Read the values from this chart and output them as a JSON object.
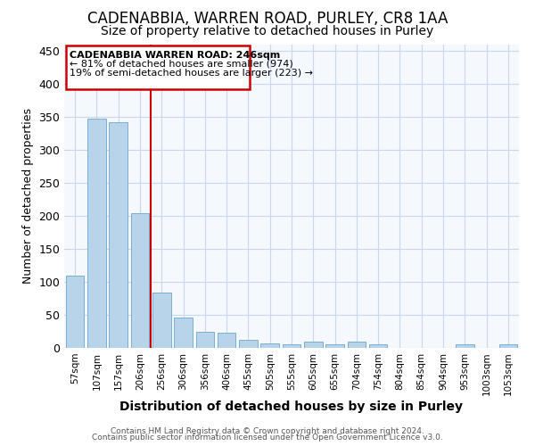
{
  "title": "CADENABBIA, WARREN ROAD, PURLEY, CR8 1AA",
  "subtitle": "Size of property relative to detached houses in Purley",
  "xlabel": "Distribution of detached houses by size in Purley",
  "ylabel": "Number of detached properties",
  "categories": [
    "57sqm",
    "107sqm",
    "157sqm",
    "206sqm",
    "256sqm",
    "306sqm",
    "356sqm",
    "406sqm",
    "455sqm",
    "505sqm",
    "555sqm",
    "605sqm",
    "655sqm",
    "704sqm",
    "754sqm",
    "804sqm",
    "854sqm",
    "904sqm",
    "953sqm",
    "1003sqm",
    "1053sqm"
  ],
  "values": [
    110,
    348,
    342,
    204,
    84,
    46,
    25,
    23,
    12,
    7,
    6,
    9,
    5,
    9,
    5,
    0,
    0,
    0,
    5,
    0,
    5
  ],
  "bar_color": "#b8d4ea",
  "bar_edge_color": "#7aaed4",
  "grid_color": "#c8d8ec",
  "background_color": "#ffffff",
  "plot_bg_color": "#f5f8fd",
  "vline_x": 3.5,
  "annotation_text_line1": "CADENABBIA WARREN ROAD: 246sqm",
  "annotation_text_line2": "← 81% of detached houses are smaller (974)",
  "annotation_text_line3": "19% of semi-detached houses are larger (223) →",
  "annotation_box_color": "#cc0000",
  "vline_color": "#cc0000",
  "ylim": [
    0,
    460
  ],
  "footer_line1": "Contains HM Land Registry data © Crown copyright and database right 2024.",
  "footer_line2": "Contains public sector information licensed under the Open Government Licence v3.0."
}
